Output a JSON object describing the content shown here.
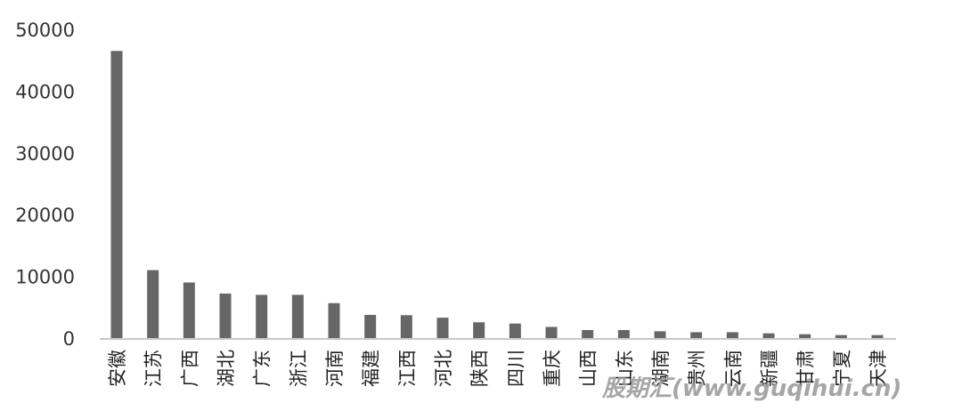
{
  "chart_data": {
    "type": "bar",
    "title": "",
    "xlabel": "",
    "ylabel": "",
    "ylim": [
      0,
      50000
    ],
    "yticks": [
      0,
      10000,
      20000,
      30000,
      40000,
      50000
    ],
    "grid": false,
    "legend": "none",
    "bar_color": "#666666",
    "categories": [
      "安徽",
      "江苏",
      "广西",
      "湖北",
      "广东",
      "浙江",
      "河南",
      "福建",
      "江西",
      "河北",
      "陕西",
      "四川",
      "重庆",
      "山西",
      "山东",
      "湖南",
      "贵州",
      "云南",
      "新疆",
      "甘肃",
      "宁夏",
      "天津"
    ],
    "values": [
      46500,
      11000,
      9000,
      7200,
      7000,
      7000,
      5650,
      3750,
      3700,
      3300,
      2550,
      2350,
      1800,
      1300,
      1300,
      1100,
      950,
      950,
      760,
      620,
      480,
      480
    ]
  },
  "watermark": "股期汇(www.guqihui.cn)"
}
